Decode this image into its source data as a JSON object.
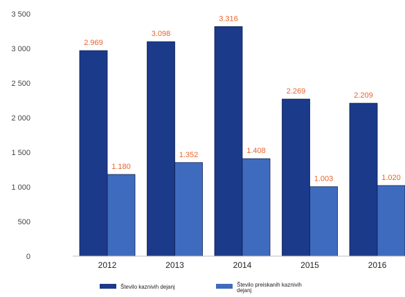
{
  "chart_data": {
    "type": "bar",
    "categories": [
      "2012",
      "2013",
      "2014",
      "2015",
      "2016"
    ],
    "series": [
      {
        "name": "Število kaznivih dejanj",
        "values": [
          2969,
          3098,
          3316,
          2269,
          2209
        ],
        "labels": [
          "2.969",
          "3.098",
          "3.316",
          "2.269",
          "2.209"
        ],
        "color": "#1b3a8a"
      },
      {
        "name": "Število preiskanih kaznivih dejanj",
        "values": [
          1180,
          1352,
          1408,
          1003,
          1020
        ],
        "labels": [
          "1.180",
          "1.352",
          "1.408",
          "1.003",
          "1.020"
        ],
        "color": "#3f6bbf"
      }
    ],
    "y_ticks": [
      0,
      500,
      1000,
      1500,
      2000,
      2500,
      3000,
      3500
    ],
    "y_tick_labels": [
      "0",
      "500",
      "1 000",
      "1 500",
      "2 000",
      "2 500",
      "3 000",
      "3 500"
    ],
    "ylim": [
      0,
      3500
    ],
    "grid": false,
    "legend_position": "bottom",
    "data_label_color": "#e8632b",
    "title": "",
    "xlabel": "",
    "ylabel": ""
  }
}
